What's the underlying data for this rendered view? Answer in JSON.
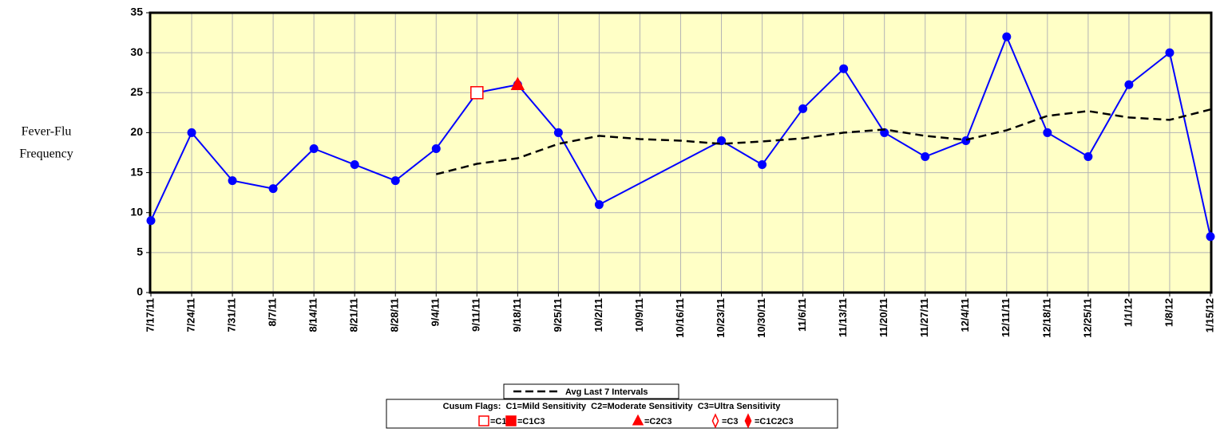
{
  "chart_data": {
    "type": "line",
    "y_label": [
      "Fever-Flu",
      "Frequency"
    ],
    "categories": [
      "7/17/11",
      "7/24/11",
      "7/31/11",
      "8/7/11",
      "8/14/11",
      "8/21/11",
      "8/28/11",
      "9/4/11",
      "9/11/11",
      "9/18/11",
      "9/25/11",
      "10/2/11",
      "10/9/11",
      "10/16/11",
      "10/23/11",
      "10/30/11",
      "11/6/11",
      "11/13/11",
      "11/20/11",
      "11/27/11",
      "12/4/11",
      "12/11/11",
      "12/18/11",
      "12/25/11",
      "1/1/12",
      "1/8/12",
      "1/15/12"
    ],
    "series": [
      {
        "color": "#0000ff",
        "marker": "circle",
        "x": [
          "7/17/11",
          "7/24/11",
          "7/31/11",
          "8/7/11",
          "8/14/11",
          "8/21/11",
          "8/28/11",
          "9/4/11",
          "9/11/11",
          "9/18/11",
          "9/25/11",
          "10/2/11",
          "10/23/11",
          "10/30/11",
          "11/6/11",
          "11/13/11",
          "11/20/11",
          "11/27/11",
          "12/4/11",
          "12/11/11",
          "12/18/11",
          "12/25/11",
          "1/1/12",
          "1/8/12",
          "1/15/12"
        ],
        "values": [
          9,
          20,
          14,
          13,
          18,
          16,
          14,
          18,
          25,
          26,
          20,
          11,
          19,
          16,
          23,
          28,
          20,
          17,
          19,
          32,
          20,
          17,
          26,
          30,
          7
        ]
      },
      {
        "name": "Avg Last 7 Intervals",
        "color": "#000000",
        "dashed": true,
        "x": [
          "9/4/11",
          "9/11/11",
          "9/18/11",
          "9/25/11",
          "10/2/11",
          "10/9/11",
          "10/16/11",
          "10/23/11",
          "10/30/11",
          "11/6/11",
          "11/13/11",
          "11/20/11",
          "11/27/11",
          "12/4/11",
          "12/11/11",
          "12/18/11",
          "12/25/11",
          "1/1/12",
          "1/8/12",
          "1/15/12"
        ],
        "values": [
          14.8,
          16.1,
          16.8,
          18.6,
          19.6,
          19.2,
          19.0,
          18.6,
          18.9,
          19.3,
          20.0,
          20.4,
          19.6,
          19.1,
          20.3,
          22.1,
          22.7,
          21.9,
          21.6,
          22.9
        ]
      }
    ],
    "flags": [
      {
        "x": "9/11/11",
        "value": 25,
        "symbol": "square-open"
      },
      {
        "x": "9/18/11",
        "value": 26,
        "symbol": "triangle"
      }
    ],
    "flag_legend_title": "Cusum Flags:  C1=Mild Sensitivity  C2=Moderate Sensitivity  C3=Ultra Sensitivity",
    "flag_legend": [
      {
        "symbol": "square-open",
        "label": "=C1"
      },
      {
        "symbol": "square",
        "label": "=C1C3"
      },
      {
        "symbol": "triangle",
        "label": "=C2C3"
      },
      {
        "symbol": "diamond-open",
        "label": "=C3"
      },
      {
        "symbol": "diamond",
        "label": "=C1C2C3"
      }
    ],
    "flag_color": "#ff0000",
    "plot_background": "#ffffc6",
    "ylim": [
      0,
      35
    ],
    "yticks": [
      0,
      5,
      10,
      15,
      20,
      25,
      30,
      35
    ],
    "grid": true
  }
}
